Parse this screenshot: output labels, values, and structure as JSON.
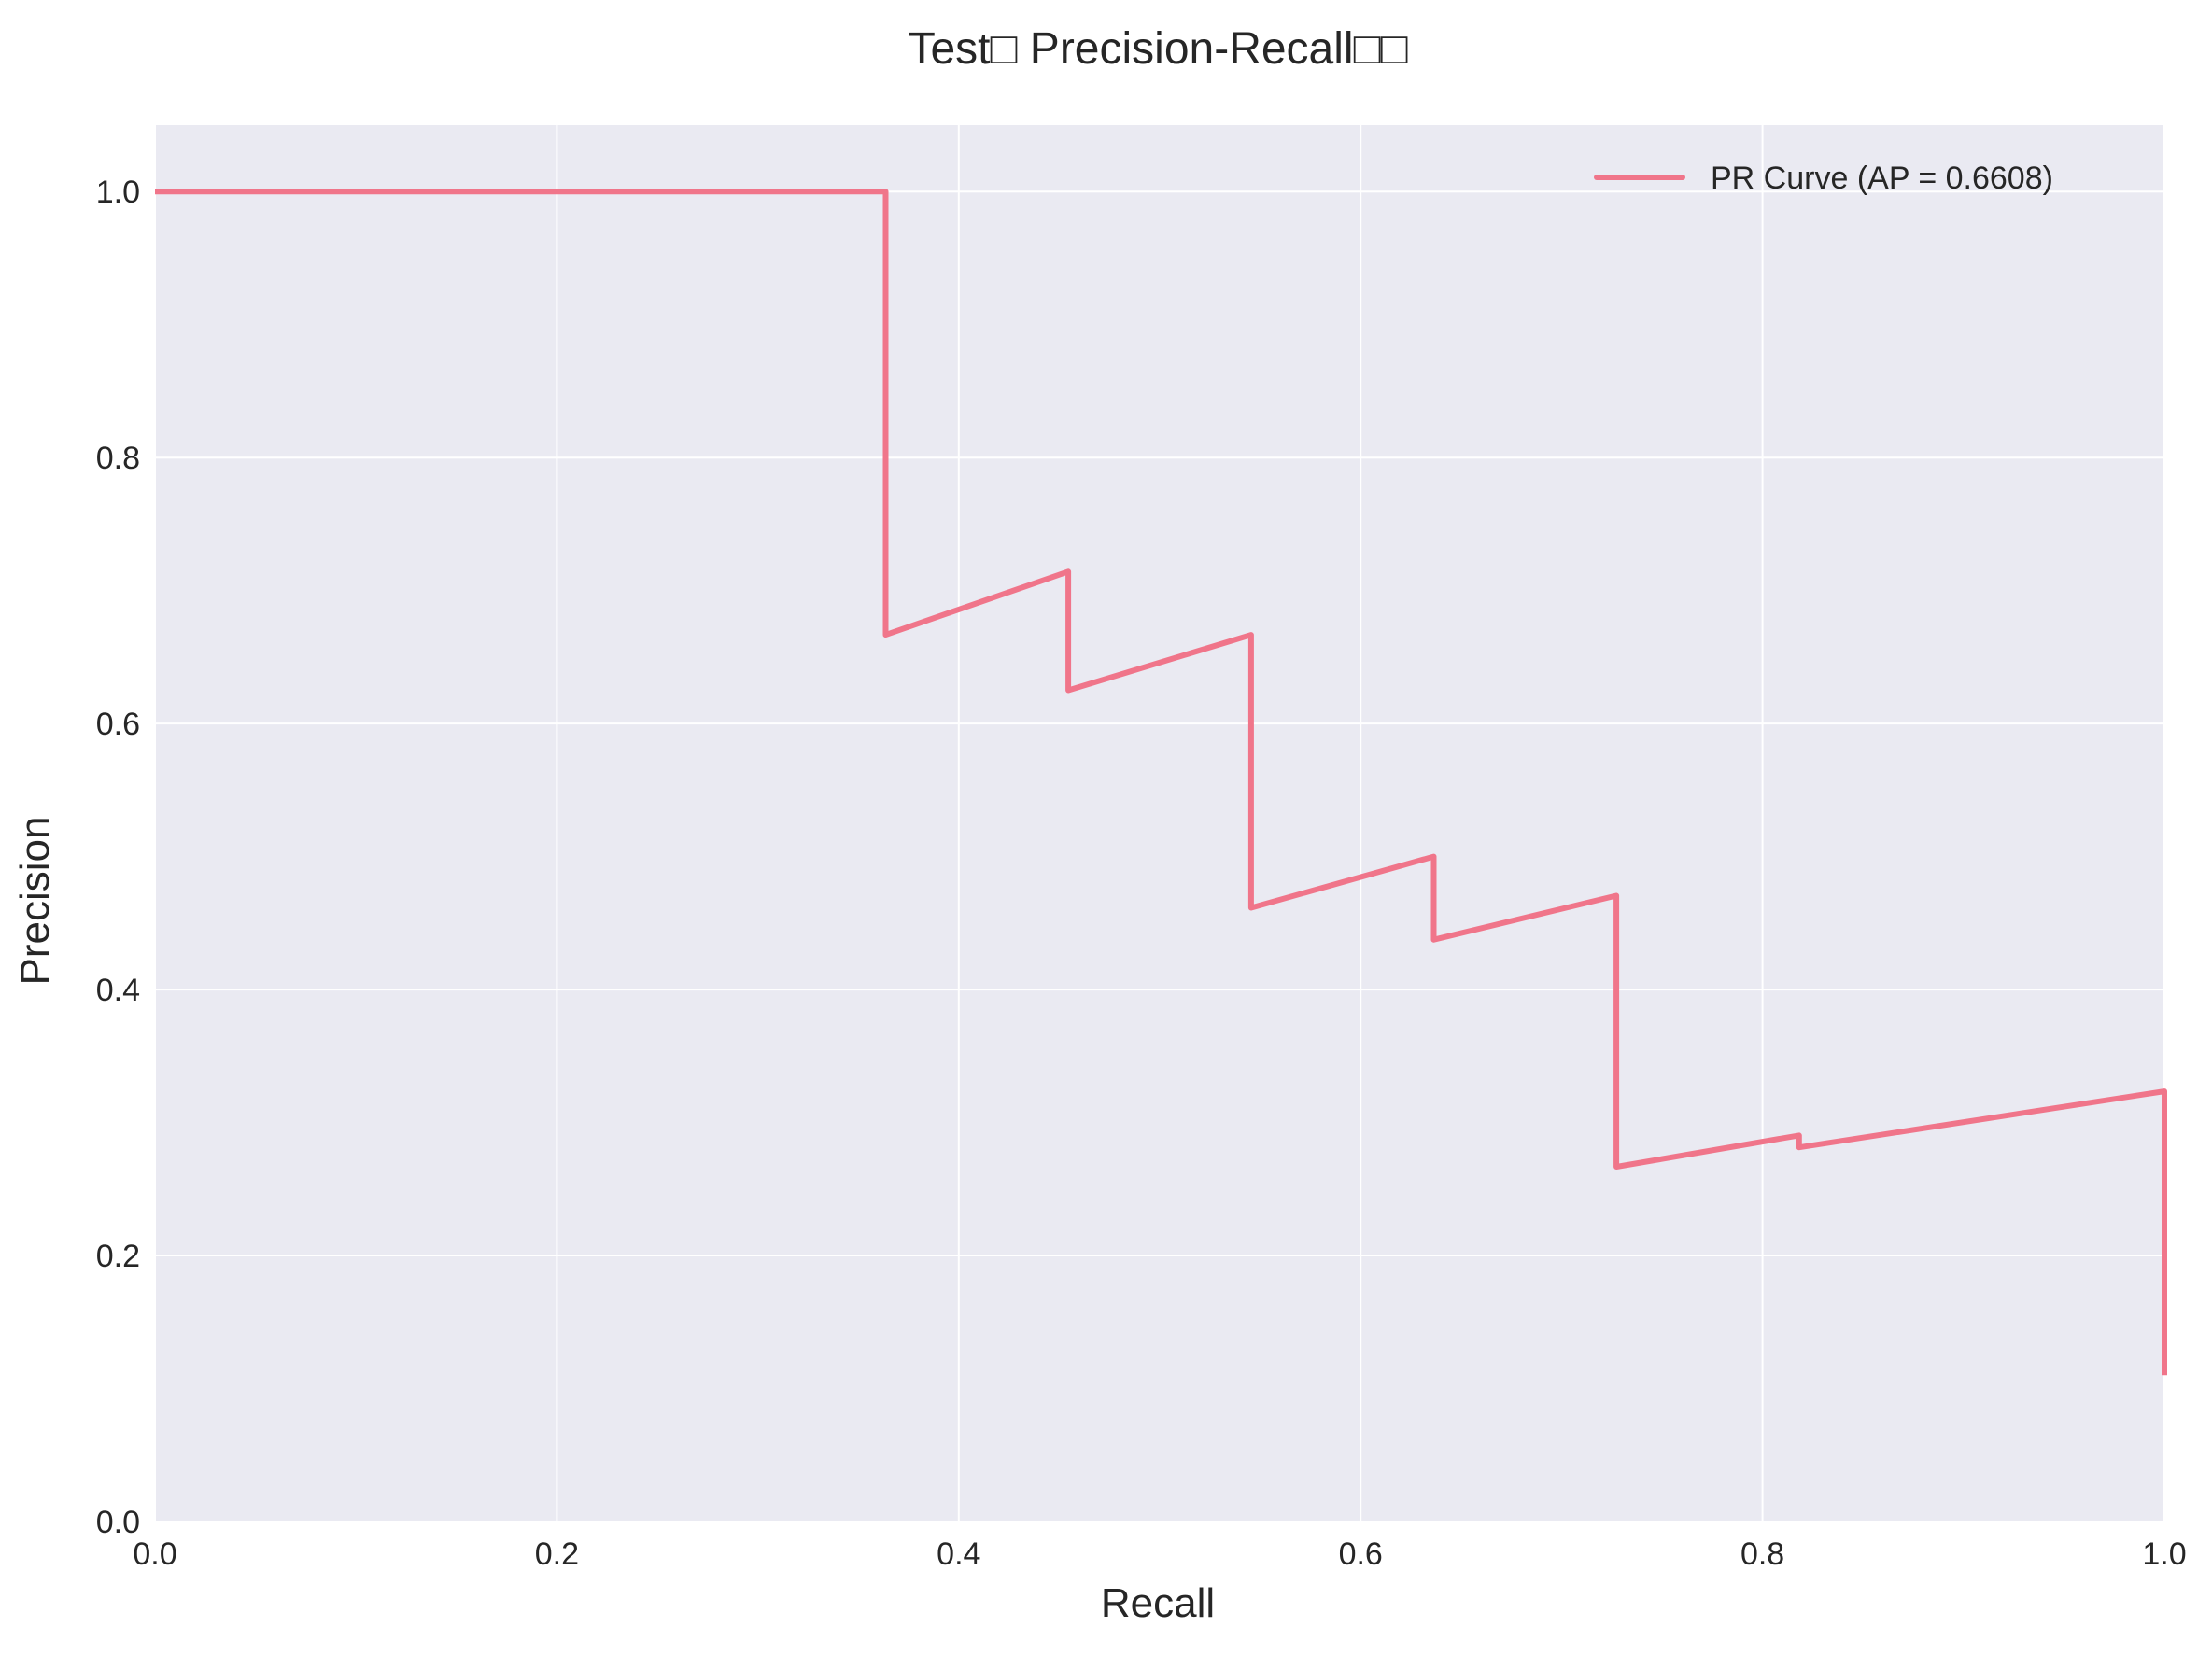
{
  "chart_data": {
    "type": "line",
    "title": "Test□ Precision-Recall□□",
    "xlabel": "Recall",
    "ylabel": "Precision",
    "xlim": [
      0.0,
      1.0
    ],
    "ylim": [
      0.0,
      1.05
    ],
    "x_ticks": [
      "0.0",
      "0.2",
      "0.4",
      "0.6",
      "0.8",
      "1.0"
    ],
    "y_ticks": [
      "0.0",
      "0.2",
      "0.4",
      "0.6",
      "0.8",
      "1.0"
    ],
    "grid": true,
    "legend_position": "top-right",
    "background_color": "#eaeaf2",
    "series": [
      {
        "name": "PR Curve (AP = 0.6608)",
        "color": "#f0758a",
        "x": [
          0.0,
          0.3636,
          0.3636,
          0.4545,
          0.4545,
          0.5455,
          0.5455,
          0.6364,
          0.6364,
          0.7273,
          0.7273,
          0.8182,
          0.8182,
          1.0,
          1.0
        ],
        "y": [
          1.0,
          1.0,
          0.6667,
          0.7143,
          0.625,
          0.6667,
          0.4615,
          0.5,
          0.4375,
          0.4706,
          0.2667,
          0.2903,
          0.2813,
          0.3235,
          0.11
        ]
      }
    ]
  }
}
